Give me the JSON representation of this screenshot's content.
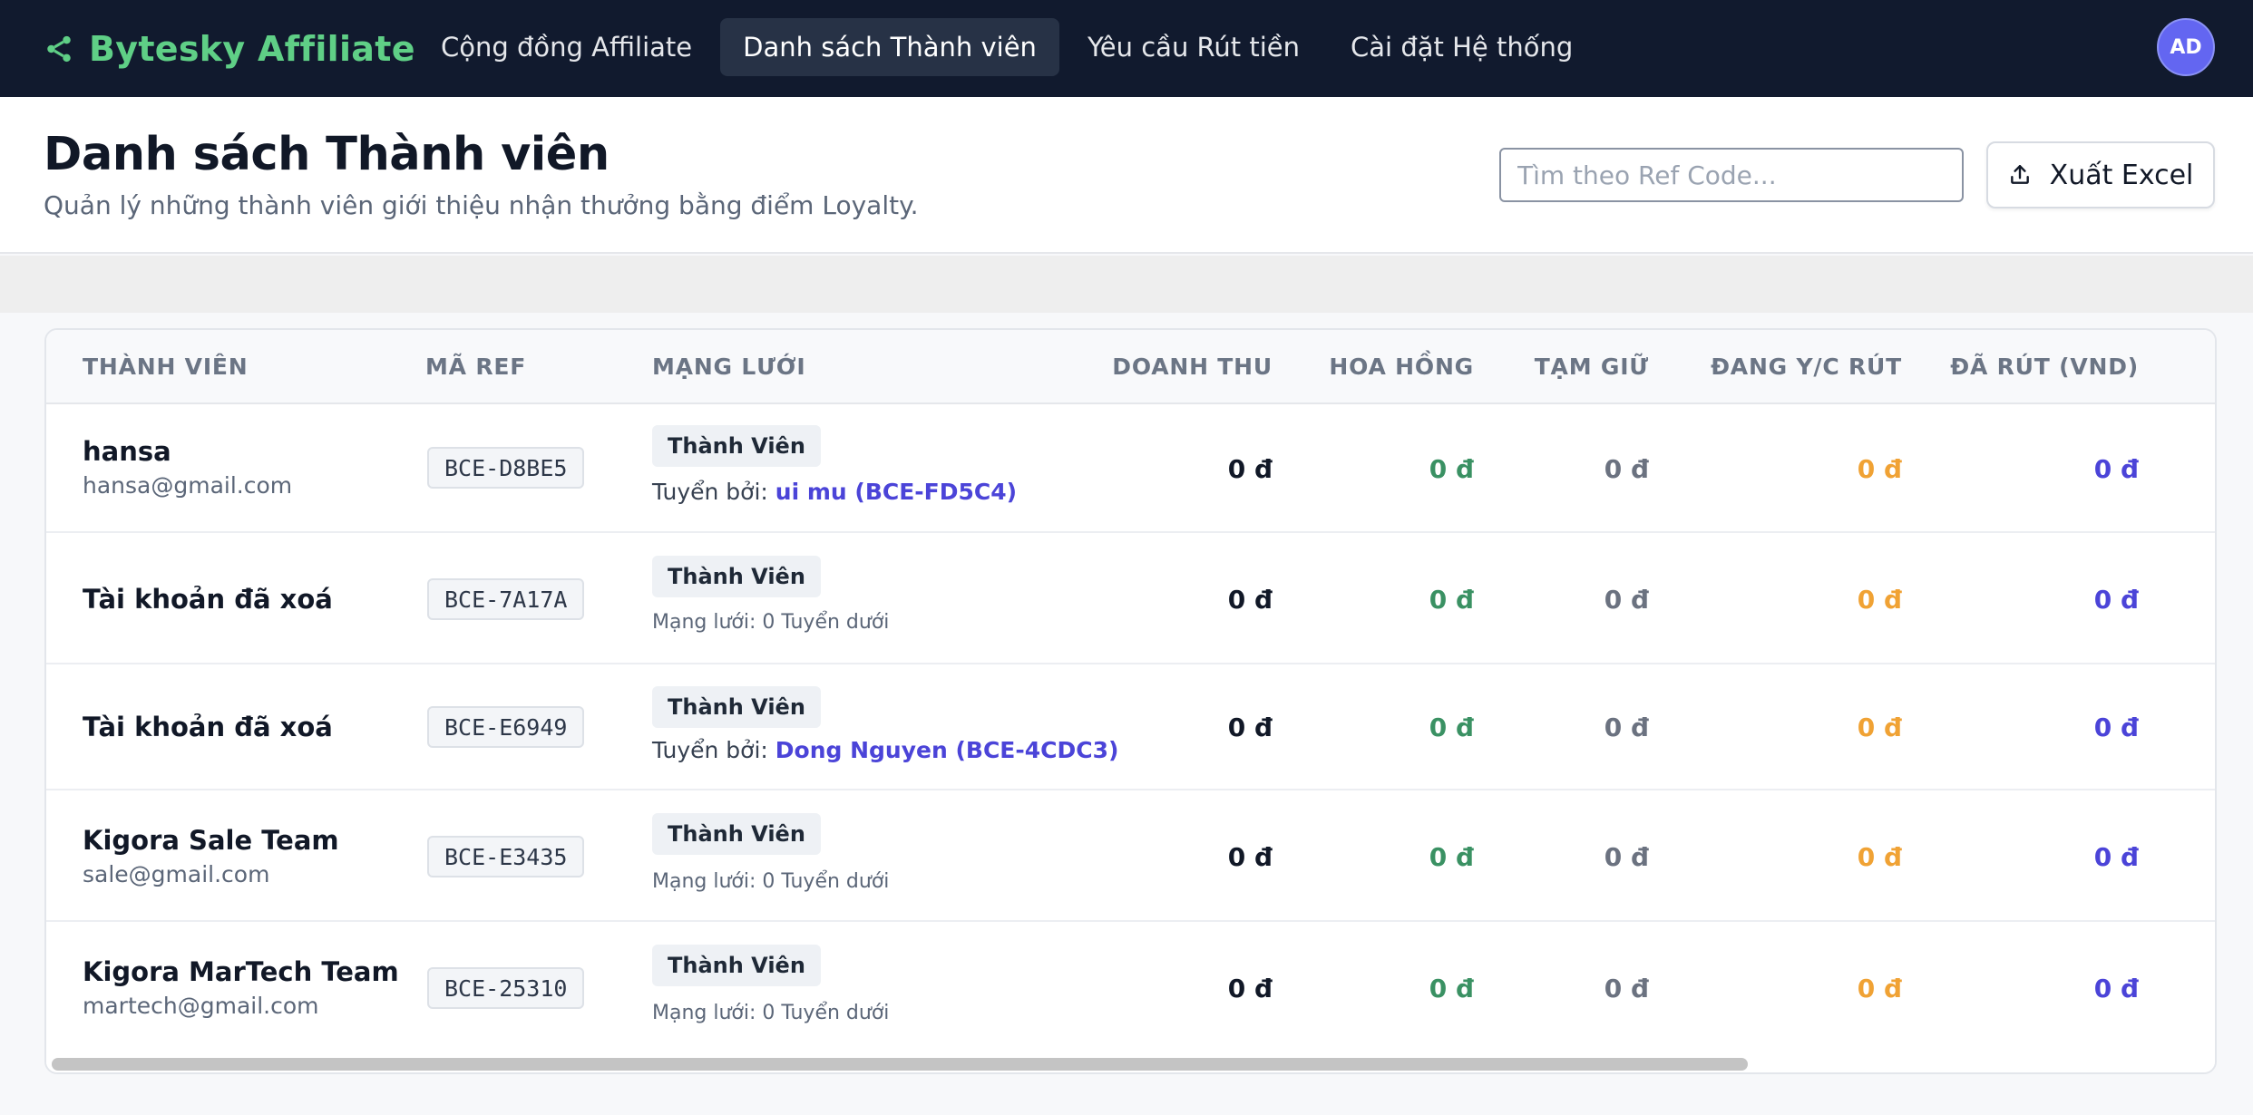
{
  "app": {
    "brand": "Bytesky Affiliate",
    "avatar_initials": "AD",
    "brand_color": "#5fcf86",
    "accent_color": "#6366f1"
  },
  "nav": {
    "items": [
      {
        "label": "Cộng đồng Affiliate"
      },
      {
        "label": "Danh sách Thành viên",
        "active": true
      },
      {
        "label": "Yêu cầu Rút tiền"
      },
      {
        "label": "Cài đặt Hệ thống"
      }
    ]
  },
  "header": {
    "title": "Danh sách Thành viên",
    "subtitle": "Quản lý những thành viên giới thiệu nhận thưởng bằng điểm Loyalty.",
    "search_placeholder": "Tìm theo Ref Code...",
    "search_icon": "search-icon",
    "export_label": "Xuất Excel",
    "export_icon": "upload-icon"
  },
  "table": {
    "columns": {
      "member": "THÀNH VIÊN",
      "ref": "MÃ REF",
      "network": "MẠNG LƯỚI",
      "revenue": "DOANH THU",
      "commission": "HOA HỒNG",
      "hold": "TẠM GIỮ",
      "pending": "ĐANG Y/C RÚT",
      "withdrawn": "ĐÃ RÚT (VND)"
    },
    "rows": [
      {
        "name": "hansa",
        "email": "hansa@gmail.com",
        "ref": "BCE-D8BE5",
        "role": "Thành Viên",
        "recruit_prefix": "Tuyển bởi: ",
        "recruit_link": "ui mu (BCE-FD5C4)",
        "revenue": "0 đ",
        "commission": "0 đ",
        "hold": "0 đ",
        "pending": "0 đ",
        "withdrawn": "0 đ"
      },
      {
        "name": "Tài khoản đã xoá",
        "email": "",
        "ref": "BCE-7A17A",
        "role": "Thành Viên",
        "network_text": "Mạng lưới: 0 Tuyển dưới",
        "revenue": "0 đ",
        "commission": "0 đ",
        "hold": "0 đ",
        "pending": "0 đ",
        "withdrawn": "0 đ"
      },
      {
        "name": "Tài khoản đã xoá",
        "email": "",
        "ref": "BCE-E6949",
        "role": "Thành Viên",
        "recruit_prefix": "Tuyển bởi: ",
        "recruit_link": "Dong Nguyen (BCE-4CDC3)",
        "revenue": "0 đ",
        "commission": "0 đ",
        "hold": "0 đ",
        "pending": "0 đ",
        "withdrawn": "0 đ"
      },
      {
        "name": "Kigora Sale Team",
        "email": "sale@gmail.com",
        "ref": "BCE-E3435",
        "role": "Thành Viên",
        "network_text": "Mạng lưới: 0 Tuyển dưới",
        "revenue": "0 đ",
        "commission": "0 đ",
        "hold": "0 đ",
        "pending": "0 đ",
        "withdrawn": "0 đ"
      },
      {
        "name": "Kigora MarTech Team",
        "email": "martech@gmail.com",
        "ref": "BCE-25310",
        "role": "Thành Viên",
        "network_text": "Mạng lưới: 0 Tuyển dưới",
        "revenue": "0 đ",
        "commission": "0 đ",
        "hold": "0 đ",
        "pending": "0 đ",
        "withdrawn": "0 đ"
      }
    ]
  }
}
